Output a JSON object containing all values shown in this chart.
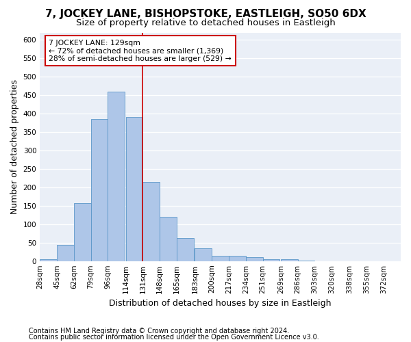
{
  "title1": "7, JOCKEY LANE, BISHOPSTOKE, EASTLEIGH, SO50 6DX",
  "title2": "Size of property relative to detached houses in Eastleigh",
  "xlabel": "Distribution of detached houses by size in Eastleigh",
  "ylabel": "Number of detached properties",
  "footnote1": "Contains HM Land Registry data © Crown copyright and database right 2024.",
  "footnote2": "Contains public sector information licensed under the Open Government Licence v3.0.",
  "annotation_line1": "7 JOCKEY LANE: 129sqm",
  "annotation_line2": "← 72% of detached houses are smaller (1,369)",
  "annotation_line3": "28% of semi-detached houses are larger (529) →",
  "bin_edges": [
    28,
    45,
    62,
    79,
    96,
    114,
    131,
    148,
    165,
    183,
    200,
    217,
    234,
    251,
    269,
    286,
    303,
    320,
    338,
    355,
    372
  ],
  "bin_labels": [
    "28sqm",
    "45sqm",
    "62sqm",
    "79sqm",
    "96sqm",
    "114sqm",
    "131sqm",
    "148sqm",
    "165sqm",
    "183sqm",
    "200sqm",
    "217sqm",
    "234sqm",
    "251sqm",
    "269sqm",
    "286sqm",
    "303sqm",
    "320sqm",
    "338sqm",
    "355sqm",
    "372sqm"
  ],
  "bar_heights": [
    5,
    44,
    158,
    385,
    460,
    390,
    215,
    120,
    63,
    35,
    15,
    15,
    10,
    5,
    5,
    2,
    0,
    0,
    0,
    0
  ],
  "bar_color": "#aec6e8",
  "bar_edge_color": "#5a96c8",
  "vline_x": 131,
  "vline_color": "#cc0000",
  "ylim": [
    0,
    620
  ],
  "yticks": [
    0,
    50,
    100,
    150,
    200,
    250,
    300,
    350,
    400,
    450,
    500,
    550,
    600
  ],
  "bg_color": "#eaeff7",
  "box_color": "#cc0000",
  "grid_color": "#ffffff",
  "title1_fontsize": 11,
  "title2_fontsize": 9.5,
  "axis_label_fontsize": 9,
  "tick_fontsize": 7.5,
  "footnote_fontsize": 7.0
}
